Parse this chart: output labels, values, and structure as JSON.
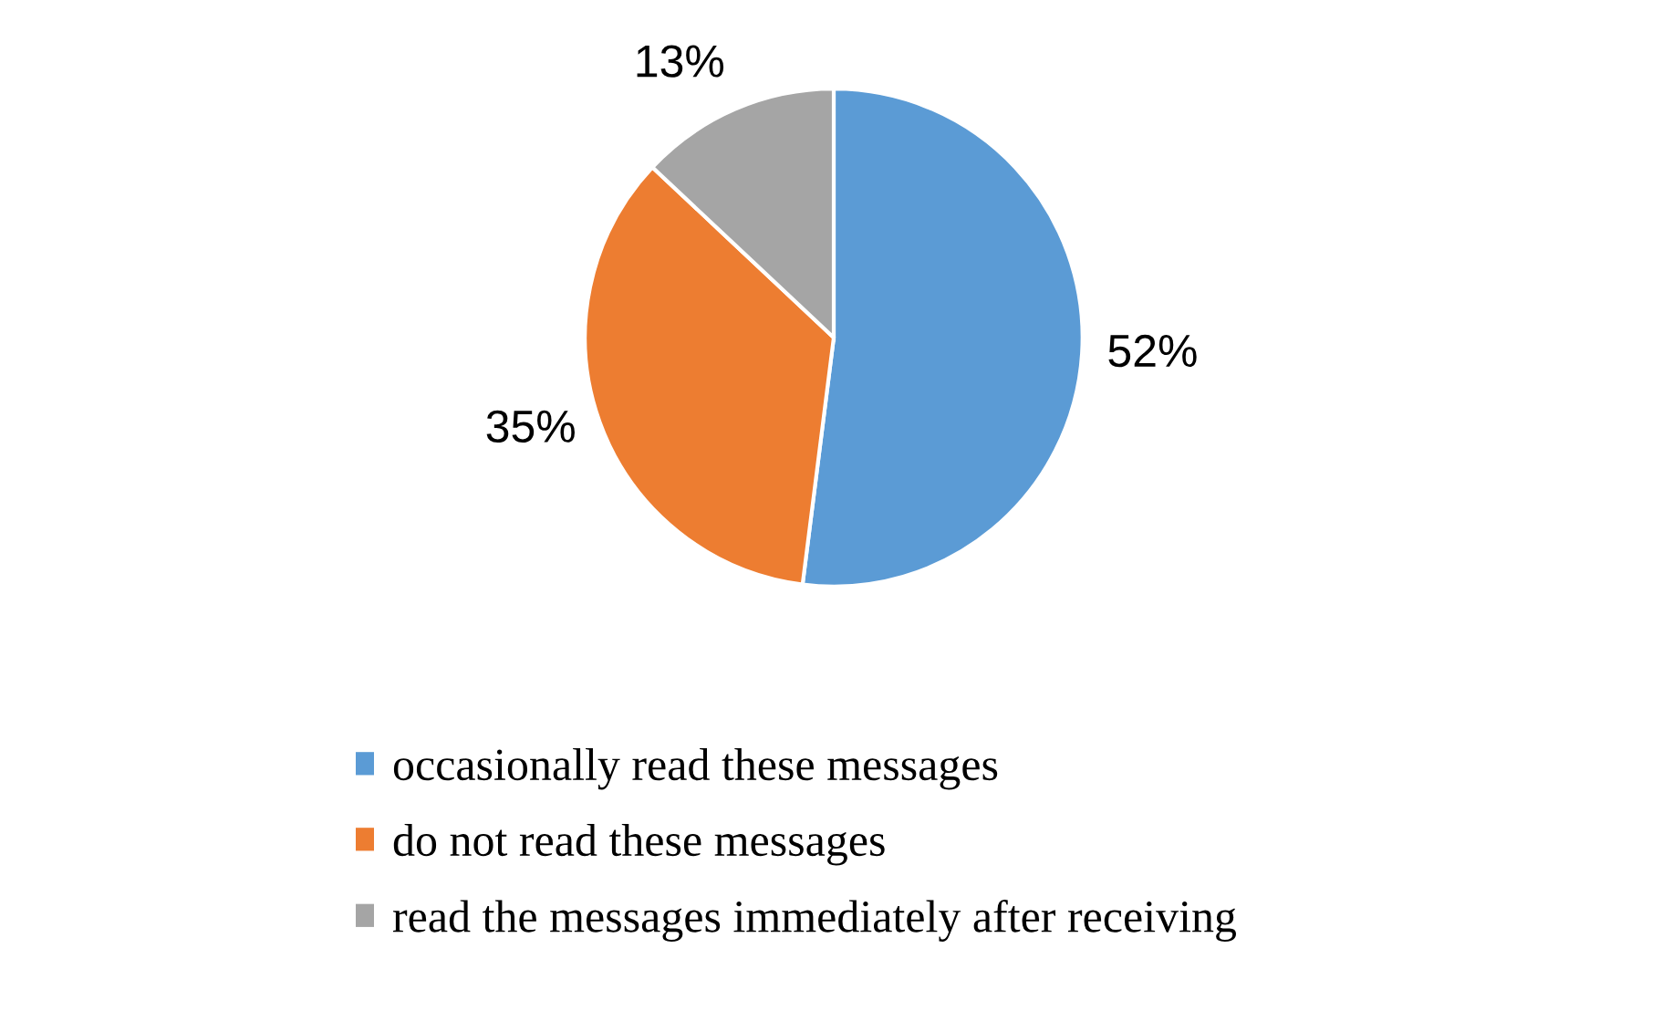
{
  "chart_data": {
    "type": "pie",
    "categories": [
      "occasionally read these messages",
      "do not read these messages",
      "read the messages immediately after receiving"
    ],
    "values": [
      52,
      35,
      13
    ],
    "value_labels": [
      "52%",
      "35%",
      "13%"
    ],
    "colors": [
      "#5b9bd5",
      "#ed7d31",
      "#a5a5a5"
    ],
    "legend": "bottom"
  }
}
